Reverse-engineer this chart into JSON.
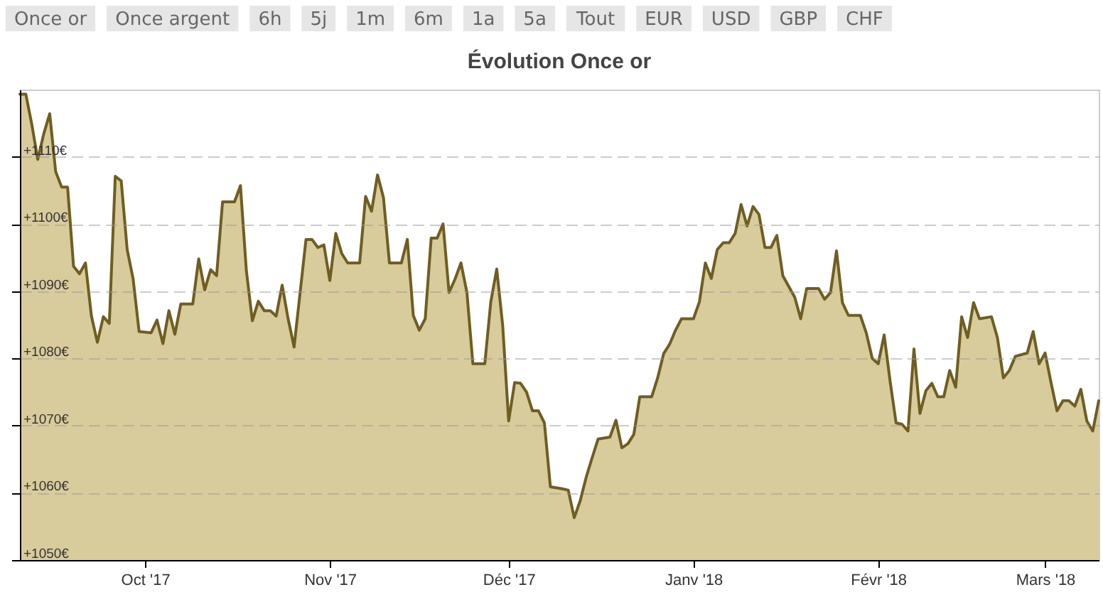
{
  "chart_data": {
    "type": "area",
    "title": "Évolution Once or",
    "annotations": [
      "Once or",
      "Once argent",
      "6h",
      "5j",
      "1m",
      "6m",
      "1a",
      "5a",
      "Tout",
      "EUR",
      "USD",
      "GBP",
      "CHF"
    ],
    "xlim": [
      "2017-09-10",
      "2018-03-10"
    ],
    "xticks": [
      {
        "value": "2017-10-01",
        "label": "Oct '17"
      },
      {
        "value": "2017-11-01",
        "label": "Nov '17"
      },
      {
        "value": "2017-12-01",
        "label": "Déc '17"
      },
      {
        "value": "2018-01-01",
        "label": "Janv '18"
      },
      {
        "value": "2018-02-01",
        "label": "Févr '18"
      },
      {
        "value": "2018-03-01",
        "label": "Mars '18"
      }
    ],
    "ylim": [
      1050,
      1120
    ],
    "yticks": [
      {
        "value": 1050,
        "label": "+1050€"
      },
      {
        "value": 1060,
        "label": "+1060€"
      },
      {
        "value": 1070,
        "label": "+1070€"
      },
      {
        "value": 1080,
        "label": "+1080€"
      },
      {
        "value": 1090,
        "label": "+1090€"
      },
      {
        "value": 1100,
        "label": "+1100€"
      },
      {
        "value": 1110,
        "label": "+1110€"
      }
    ],
    "grid": "y",
    "series": [
      {
        "color": "#d8cb9c",
        "x": [
          "2017-09-10",
          "2017-09-11",
          "2017-09-12",
          "2017-09-13",
          "2017-09-14",
          "2017-09-15",
          "2017-09-16",
          "2017-09-17",
          "2017-09-18",
          "2017-09-19",
          "2017-09-20",
          "2017-09-21",
          "2017-09-22",
          "2017-09-23",
          "2017-09-24",
          "2017-09-25",
          "2017-09-26",
          "2017-09-27",
          "2017-09-28",
          "2017-09-29",
          "2017-09-30",
          "2017-10-02",
          "2017-10-03",
          "2017-10-04",
          "2017-10-05",
          "2017-10-06",
          "2017-10-07",
          "2017-10-09",
          "2017-10-10",
          "2017-10-11",
          "2017-10-12",
          "2017-10-13",
          "2017-10-14",
          "2017-10-16",
          "2017-10-17",
          "2017-10-18",
          "2017-10-19",
          "2017-10-20",
          "2017-10-21",
          "2017-10-22",
          "2017-10-23",
          "2017-10-24",
          "2017-10-25",
          "2017-10-26",
          "2017-10-28",
          "2017-10-29",
          "2017-10-30",
          "2017-10-31",
          "2017-11-01",
          "2017-11-02",
          "2017-11-03",
          "2017-11-04",
          "2017-11-06",
          "2017-11-07",
          "2017-11-08",
          "2017-11-09",
          "2017-11-10",
          "2017-11-11",
          "2017-11-13",
          "2017-11-14",
          "2017-11-15",
          "2017-11-16",
          "2017-11-17",
          "2017-11-18",
          "2017-11-19",
          "2017-11-20",
          "2017-11-21",
          "2017-11-22",
          "2017-11-23",
          "2017-11-24",
          "2017-11-25",
          "2017-11-27",
          "2017-11-28",
          "2017-11-29",
          "2017-11-30",
          "2017-12-01",
          "2017-12-02",
          "2017-12-03",
          "2017-12-04",
          "2017-12-05",
          "2017-12-06",
          "2017-12-07",
          "2017-12-08",
          "2017-12-10",
          "2017-12-11",
          "2017-12-12",
          "2017-12-13",
          "2017-12-14",
          "2017-12-15",
          "2017-12-16",
          "2017-12-18",
          "2017-12-19",
          "2017-12-20",
          "2017-12-21",
          "2017-12-22",
          "2017-12-23",
          "2017-12-25",
          "2017-12-26",
          "2017-12-27",
          "2017-12-28",
          "2017-12-29",
          "2017-12-30",
          "2018-01-01",
          "2018-01-02",
          "2018-01-03",
          "2018-01-04",
          "2018-01-05",
          "2018-01-06",
          "2018-01-07",
          "2018-01-08",
          "2018-01-09",
          "2018-01-10",
          "2018-01-11",
          "2018-01-12",
          "2018-01-13",
          "2018-01-14",
          "2018-01-15",
          "2018-01-16",
          "2018-01-18",
          "2018-01-19",
          "2018-01-20",
          "2018-01-22",
          "2018-01-23",
          "2018-01-24",
          "2018-01-25",
          "2018-01-26",
          "2018-01-27",
          "2018-01-29",
          "2018-01-30",
          "2018-01-31",
          "2018-02-01",
          "2018-02-02",
          "2018-02-03",
          "2018-02-04",
          "2018-02-05",
          "2018-02-06",
          "2018-02-07",
          "2018-02-08",
          "2018-02-09",
          "2018-02-10",
          "2018-02-11",
          "2018-02-12",
          "2018-02-13",
          "2018-02-14",
          "2018-02-15",
          "2018-02-16",
          "2018-02-17",
          "2018-02-18",
          "2018-02-20",
          "2018-02-21",
          "2018-02-22",
          "2018-02-23",
          "2018-02-24",
          "2018-02-26",
          "2018-02-27",
          "2018-02-28",
          "2018-03-01",
          "2018-03-02",
          "2018-03-03",
          "2018-03-04",
          "2018-03-05",
          "2018-03-06",
          "2018-03-07",
          "2018-03-08",
          "2018-03-09",
          "2018-03-10"
        ],
        "values": [
          1119.3,
          1119.3,
          1114.8,
          1109.6,
          1113.4,
          1116.4,
          1107.8,
          1105.5,
          1105.5,
          1093.7,
          1092.6,
          1094.2,
          1086.3,
          1082.4,
          1086.2,
          1085.2,
          1107.1,
          1106.4,
          1096.2,
          1091.8,
          1084.0,
          1083.8,
          1085.7,
          1082.2,
          1087.1,
          1083.6,
          1088.1,
          1088.1,
          1094.8,
          1090.2,
          1093.2,
          1092.3,
          1103.3,
          1103.3,
          1105.7,
          1093.0,
          1085.6,
          1088.5,
          1087.1,
          1087.1,
          1086.3,
          1090.9,
          1085.9,
          1081.7,
          1097.7,
          1097.7,
          1096.5,
          1096.9,
          1091.6,
          1098.6,
          1095.6,
          1094.2,
          1094.2,
          1104.1,
          1101.9,
          1107.3,
          1103.9,
          1094.2,
          1094.2,
          1097.7,
          1086.4,
          1084.2,
          1085.9,
          1097.9,
          1097.9,
          1100.0,
          1089.8,
          1091.8,
          1094.2,
          1089.8,
          1079.2,
          1079.2,
          1088.4,
          1093.3,
          1084.9,
          1070.7,
          1076.4,
          1076.3,
          1075.0,
          1072.2,
          1072.2,
          1070.4,
          1060.9,
          1060.6,
          1060.4,
          1056.3,
          1058.8,
          1062.3,
          1065.2,
          1068.0,
          1068.3,
          1070.8,
          1066.7,
          1067.3,
          1068.7,
          1074.3,
          1074.3,
          1077.1,
          1080.7,
          1082.1,
          1084.2,
          1085.9,
          1085.9,
          1088.4,
          1094.2,
          1091.9,
          1096.2,
          1097.2,
          1097.2,
          1098.6,
          1102.9,
          1099.7,
          1102.6,
          1101.4,
          1096.5,
          1096.5,
          1098.3,
          1092.3,
          1089.1,
          1085.9,
          1090.4,
          1090.4,
          1088.8,
          1089.8,
          1096.0,
          1088.3,
          1086.4,
          1086.4,
          1083.8,
          1080.0,
          1079.2,
          1083.5,
          1076.6,
          1070.4,
          1070.2,
          1069.2,
          1081.4,
          1071.8,
          1075.2,
          1076.3,
          1074.3,
          1074.3,
          1078.2,
          1075.7,
          1086.2,
          1083.1,
          1088.3,
          1085.9,
          1086.2,
          1083.1,
          1077.1,
          1078.2,
          1080.3,
          1080.8,
          1084.0,
          1079.2,
          1080.8,
          1076.4,
          1072.2,
          1073.7,
          1073.7,
          1072.9,
          1075.4,
          1070.7,
          1069.2,
          1073.7
        ]
      }
    ]
  }
}
